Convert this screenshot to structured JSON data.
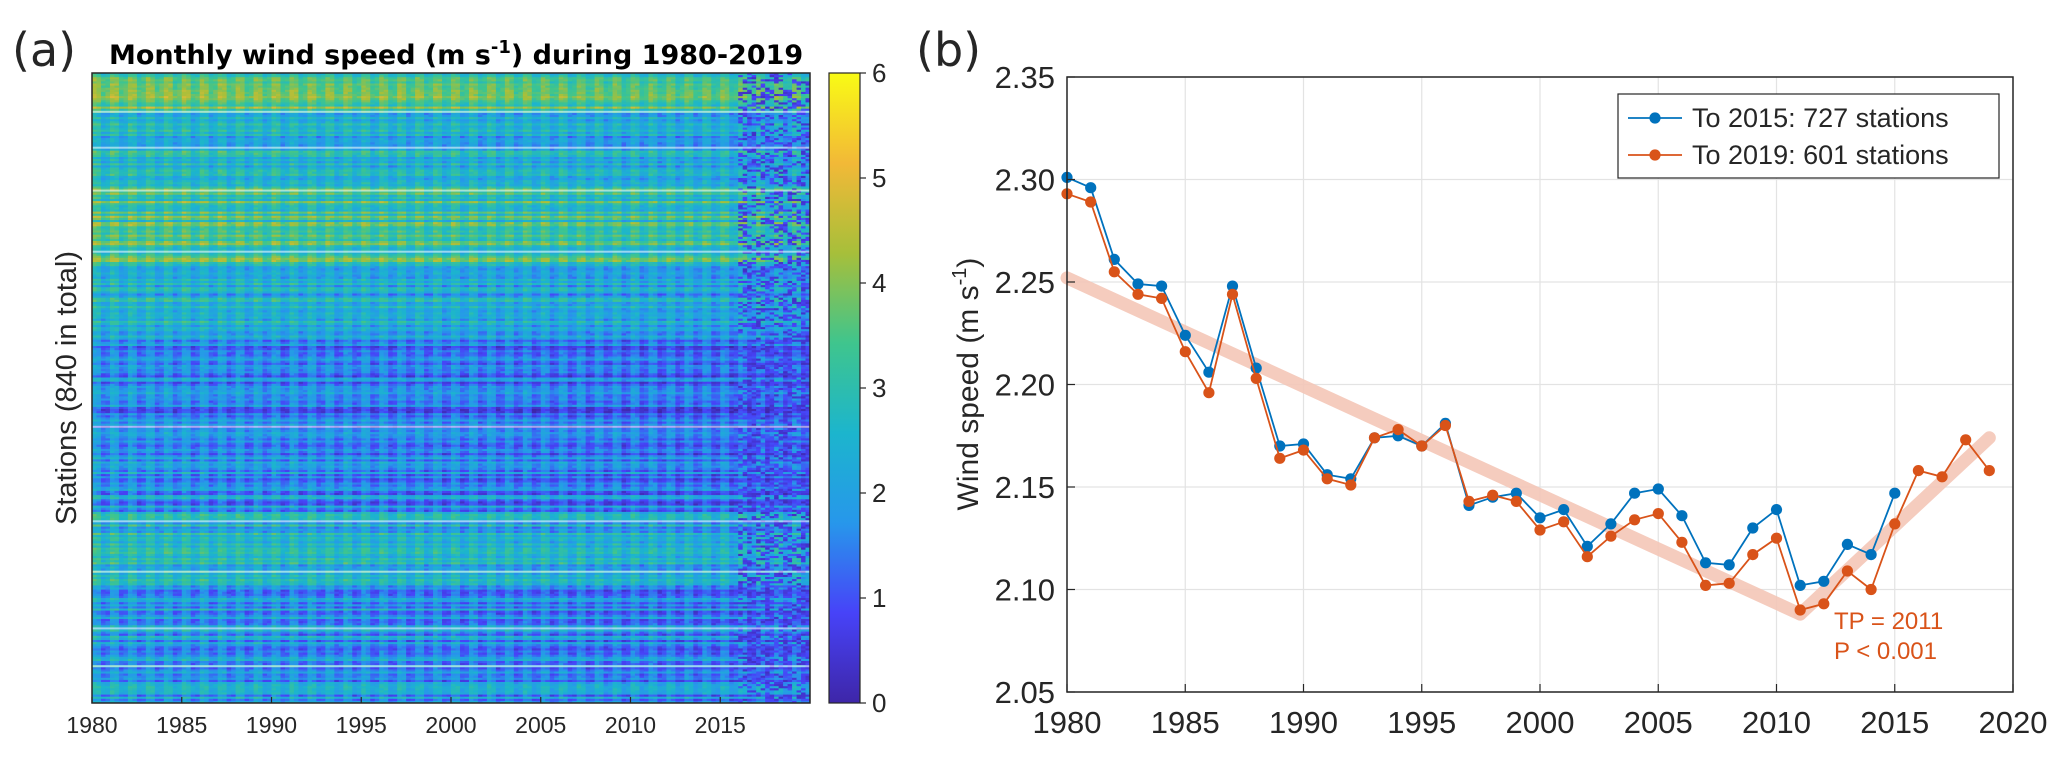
{
  "panels": {
    "a": {
      "label": "(a)",
      "title": "Monthly wind speed (m s",
      "title_sup": "-1",
      "title_tail": ") during 1980-2019",
      "ylabel": "Stations (840 in total)"
    },
    "b": {
      "label": "(b)",
      "ylabel": "Wind speed (m s",
      "ylabel_sup": "-1",
      "ylabel_tail": ")",
      "annotation_tp": "TP = 2011",
      "annotation_p": "P < 0.001"
    }
  },
  "chart_data": [
    {
      "type": "heatmap",
      "title": "Monthly wind speed (m s-1) during 1980-2019",
      "ylabel": "Stations (840 in total)",
      "x_range": [
        1980,
        2019
      ],
      "x_ticks": [
        1980,
        1985,
        1990,
        1995,
        2000,
        2005,
        2010,
        2015
      ],
      "n_stations": 840,
      "colorbar": {
        "range": [
          0,
          6
        ],
        "ticks": [
          0,
          1,
          2,
          3,
          4,
          5,
          6
        ],
        "colormap": "parula",
        "colors": [
          "#3e26a8",
          "#4743f8",
          "#2797eb",
          "#1cb5cd",
          "#3fc58d",
          "#a7bf3a",
          "#f2b937",
          "#f9fb15"
        ]
      }
    },
    {
      "type": "line",
      "xlabel": "",
      "ylabel": "Wind speed (m s-1)",
      "xlim": [
        1980,
        2020
      ],
      "ylim": [
        2.05,
        2.35
      ],
      "x_ticks": [
        1980,
        1985,
        1990,
        1995,
        2000,
        2005,
        2010,
        2015,
        2020
      ],
      "y_ticks": [
        2.05,
        2.1,
        2.15,
        2.2,
        2.25,
        2.3,
        2.35
      ],
      "grid": true,
      "legend_position": "top-right",
      "series": [
        {
          "name": "To 2015: 727 stations",
          "color": "#0072bd",
          "x": [
            1980,
            1981,
            1982,
            1983,
            1984,
            1985,
            1986,
            1987,
            1988,
            1989,
            1990,
            1991,
            1992,
            1993,
            1994,
            1995,
            1996,
            1997,
            1998,
            1999,
            2000,
            2001,
            2002,
            2003,
            2004,
            2005,
            2006,
            2007,
            2008,
            2009,
            2010,
            2011,
            2012,
            2013,
            2014,
            2015
          ],
          "values": [
            2.301,
            2.296,
            2.261,
            2.249,
            2.248,
            2.224,
            2.206,
            2.248,
            2.208,
            2.17,
            2.171,
            2.156,
            2.154,
            2.174,
            2.175,
            2.17,
            2.181,
            2.141,
            2.145,
            2.147,
            2.135,
            2.139,
            2.121,
            2.132,
            2.147,
            2.149,
            2.136,
            2.113,
            2.112,
            2.13,
            2.139,
            2.102,
            2.104,
            2.122,
            2.117,
            2.147
          ]
        },
        {
          "name": "To 2019: 601 stations",
          "color": "#d95319",
          "x": [
            1980,
            1981,
            1982,
            1983,
            1984,
            1985,
            1986,
            1987,
            1988,
            1989,
            1990,
            1991,
            1992,
            1993,
            1994,
            1995,
            1996,
            1997,
            1998,
            1999,
            2000,
            2001,
            2002,
            2003,
            2004,
            2005,
            2006,
            2007,
            2008,
            2009,
            2010,
            2011,
            2012,
            2013,
            2014,
            2015,
            2016,
            2017,
            2018,
            2019
          ],
          "values": [
            2.293,
            2.289,
            2.255,
            2.244,
            2.242,
            2.216,
            2.196,
            2.244,
            2.203,
            2.164,
            2.168,
            2.154,
            2.151,
            2.174,
            2.178,
            2.17,
            2.18,
            2.143,
            2.146,
            2.143,
            2.129,
            2.133,
            2.116,
            2.126,
            2.134,
            2.137,
            2.123,
            2.102,
            2.103,
            2.117,
            2.125,
            2.09,
            2.093,
            2.109,
            2.1,
            2.132,
            2.158,
            2.155,
            2.173,
            2.158
          ]
        }
      ],
      "trend": {
        "color": "#f4c7b8",
        "segments": [
          {
            "x": [
              1980,
              2011
            ],
            "y": [
              2.252,
              2.088
            ]
          },
          {
            "x": [
              2011,
              2019
            ],
            "y": [
              2.088,
              2.174
            ]
          }
        ]
      }
    }
  ]
}
